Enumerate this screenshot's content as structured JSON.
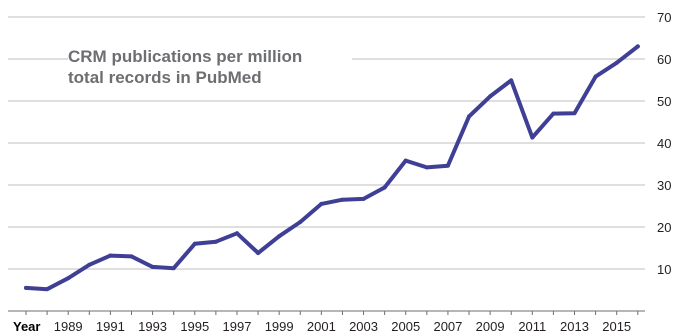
{
  "chart_data": {
    "type": "line",
    "title_lines": [
      "CRM publications per million",
      "total records in PubMed"
    ],
    "xlabel": "Year",
    "x_tick_labels": [
      "1989",
      "1991",
      "1993",
      "1995",
      "1997",
      "1999",
      "2001",
      "2003",
      "2005",
      "2007",
      "2009",
      "2011",
      "2013",
      "2015"
    ],
    "y_tick_labels": [
      "10",
      "20",
      "30",
      "40",
      "50",
      "60",
      "70"
    ],
    "ylim": [
      0,
      70
    ],
    "xlim": [
      1986.5,
      2017
    ],
    "grid": "horizontal",
    "y_axis_side": "right",
    "series": [
      {
        "color": "#3f3f95",
        "x": [
          1987,
          1988,
          1989,
          1990,
          1991,
          1992,
          1993,
          1994,
          1995,
          1996,
          1997,
          1998,
          1999,
          2000,
          2001,
          2002,
          2003,
          2004,
          2005,
          2006,
          2007,
          2008,
          2009,
          2010,
          2011,
          2012,
          2013,
          2014,
          2015,
          2016
        ],
        "y": [
          5.5,
          5.2,
          7.8,
          11,
          13.2,
          13,
          10.5,
          10.2,
          16,
          16.5,
          18.5,
          13.8,
          17.8,
          21.2,
          25.5,
          26.5,
          26.7,
          29.4,
          35.8,
          34.2,
          34.6,
          46.3,
          51.1,
          54.9,
          41.3,
          47,
          47.1,
          55.8,
          59.1,
          63
        ]
      }
    ]
  }
}
